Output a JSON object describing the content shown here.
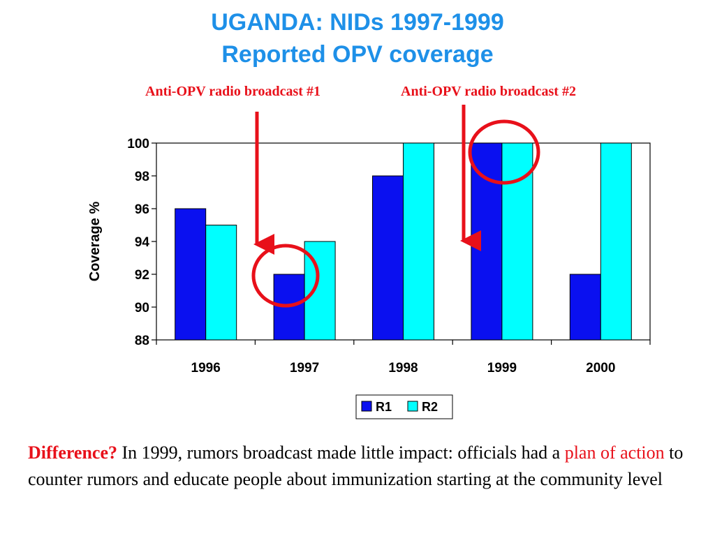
{
  "slide": {
    "title_line_1": "UGANDA: NIDs 1997-1999",
    "title_line_2": "Reported OPV coverage",
    "annotation_1": "Anti-OPV radio broadcast #1",
    "annotation_2": "Anti-OPV radio broadcast #2",
    "caption": {
      "lead": "Difference?",
      "part1": " In 1999, rumors broadcast made little impact: officials had a ",
      "highlight": "plan of action",
      "part2": " to counter rumors  and educate people about immunization starting at the community level"
    },
    "colors": {
      "title": "#1e90e8",
      "annotation": "#e8101a",
      "r1": "#0a10f0",
      "r2": "#00ffff"
    }
  },
  "chart_data": {
    "type": "bar",
    "categories": [
      "1996",
      "1997",
      "1998",
      "1999",
      "2000"
    ],
    "series": [
      {
        "name": "R1",
        "values": [
          96,
          92,
          98,
          100,
          92
        ]
      },
      {
        "name": "R2",
        "values": [
          95,
          94,
          100,
          100,
          100
        ]
      }
    ],
    "ylabel": "Coverage %",
    "ylim": [
      88,
      100
    ],
    "yticks": [
      "88",
      "90",
      "92",
      "94",
      "96",
      "98",
      "100"
    ],
    "legend_position": "bottom",
    "grid": false,
    "highlight_circles": [
      "1997",
      "1999"
    ]
  }
}
